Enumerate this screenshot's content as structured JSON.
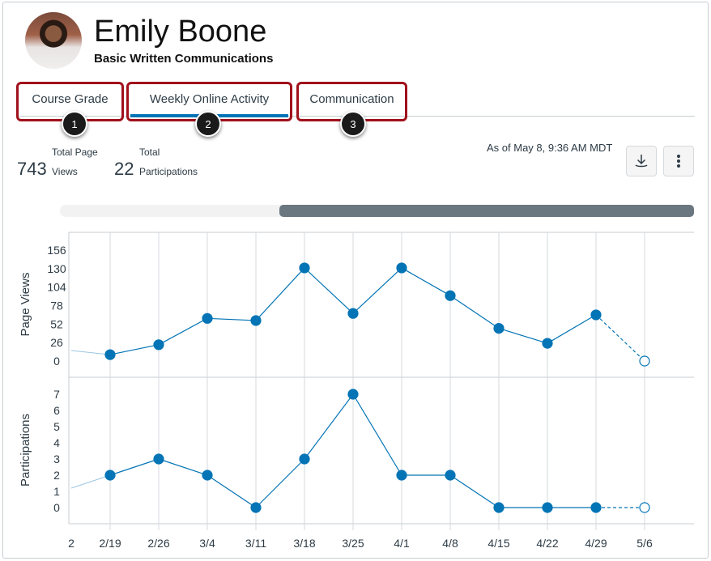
{
  "student": {
    "name": "Emily Boone",
    "course": "Basic Written Communications"
  },
  "tabs": [
    {
      "label": "Course Grade",
      "badge": "1"
    },
    {
      "label": "Weekly Online Activity",
      "badge": "2",
      "active": true
    },
    {
      "label": "Communication",
      "badge": "3"
    }
  ],
  "stats": {
    "page_views": {
      "value": "743",
      "label_top": "Total Page",
      "label_bottom": "Views"
    },
    "participations": {
      "value": "22",
      "label_top": "Total",
      "label_bottom": "Participations"
    }
  },
  "as_of": "As of May 8, 9:36 AM MDT",
  "icons": {
    "download": "download-icon",
    "menu": "kebab-menu-icon"
  },
  "colors": {
    "accent": "#0374b5",
    "highlight": "#a0111c"
  },
  "chart_data": [
    {
      "type": "line",
      "ylabel": "Page Views",
      "categories": [
        "2/19",
        "2/26",
        "3/4",
        "3/11",
        "3/18",
        "3/25",
        "4/1",
        "4/8",
        "4/15",
        "4/22",
        "4/29",
        "5/6"
      ],
      "values": [
        9,
        23,
        60,
        57,
        131,
        67,
        131,
        92,
        46,
        25,
        65,
        0
      ],
      "yticks": [
        0,
        26,
        52,
        78,
        104,
        130,
        156
      ],
      "ylim": [
        0,
        156
      ],
      "partial_last": true,
      "grid": "vertical"
    },
    {
      "type": "line",
      "ylabel": "Participations",
      "categories": [
        "2/19",
        "2/26",
        "3/4",
        "3/11",
        "3/18",
        "3/25",
        "4/1",
        "4/8",
        "4/15",
        "4/22",
        "4/29",
        "5/6"
      ],
      "values": [
        2,
        3,
        2,
        0,
        3,
        7,
        2,
        2,
        0,
        0,
        0,
        0
      ],
      "yticks": [
        0,
        1,
        2,
        3,
        4,
        5,
        6,
        7
      ],
      "ylim": [
        0,
        7
      ],
      "partial_last": true,
      "grid": "vertical"
    }
  ],
  "x_axis": {
    "cut_label": "2",
    "labels": [
      "2/19",
      "2/26",
      "3/4",
      "3/11",
      "3/18",
      "3/25",
      "4/1",
      "4/8",
      "4/15",
      "4/22",
      "4/29",
      "5/6"
    ]
  }
}
